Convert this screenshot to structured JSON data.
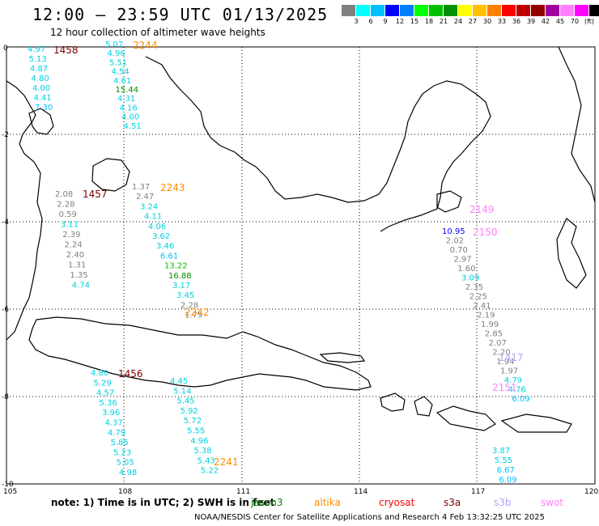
{
  "header": {
    "title": "12:00 – 23:59 UTC 01/13/2025",
    "subtitle": "12 hour collection of altimeter wave heights"
  },
  "scale": {
    "colors": [
      "#808080",
      "#00ffff",
      "#00c0ff",
      "#0000ff",
      "#0080ff",
      "#00ff00",
      "#00c000",
      "#009000",
      "#ffff00",
      "#ffc000",
      "#ff8000",
      "#ff0000",
      "#c00000",
      "#900000",
      "#a000a0",
      "#ff80ff",
      "#ff00ff",
      "#000000"
    ],
    "labels": [
      "3",
      "6",
      "9",
      "12",
      "15",
      "18",
      "21",
      "24",
      "27",
      "30",
      "33",
      "36",
      "39",
      "42",
      "45",
      "70",
      "(ft)"
    ]
  },
  "axes": {
    "x_ticks": [
      "105",
      "108",
      "111",
      "114",
      "117",
      "120"
    ],
    "y_ticks": [
      "0",
      "-2",
      "-4",
      "-6",
      "-8",
      "-10"
    ]
  },
  "passes": [
    {
      "id": "1458",
      "color": "#800000"
    },
    {
      "id": "2244",
      "color": "#ff8c00"
    },
    {
      "id": "1457",
      "color": "#800000"
    },
    {
      "id": "2243",
      "color": "#ff8c00"
    },
    {
      "id": "2242",
      "color": "#ff8c00"
    },
    {
      "id": "1456",
      "color": "#800000"
    },
    {
      "id": "2241",
      "color": "#ff8c00"
    },
    {
      "id": "2149",
      "color": "#ff80ff"
    },
    {
      "id": "2150",
      "color": "#ff80ff"
    },
    {
      "id": "1417",
      "color": "#b0a0ff"
    },
    {
      "id": "2151",
      "color": "#ff80ff"
    }
  ],
  "wave_heights": {
    "track_a": [
      "4.97",
      "5.13",
      "4.87",
      "4.80",
      "4.00",
      "4.41",
      "7.30"
    ],
    "track_b": [
      "5.07",
      "4.96",
      "5.51",
      "4.54",
      "4.61",
      "15.44",
      "4.31",
      "4.16",
      "4.00",
      "4.51"
    ],
    "track_c": [
      "2.08",
      "2.28",
      "0.59",
      "3.11",
      "2.39",
      "2.24",
      "2.40",
      "1.31",
      "1.35",
      "4.74"
    ],
    "track_d": [
      "1.37",
      "2.47",
      "3.24",
      "4.11",
      "4.06",
      "3.62",
      "3.46",
      "6.61",
      "13.22",
      "16.88",
      "3.17",
      "3.45",
      "2.28",
      "1.79"
    ],
    "track_e": [
      "4.80",
      "5.29",
      "4.57",
      "5.36",
      "3.96",
      "4.37",
      "4.79",
      "5.85",
      "5.23",
      "5.05",
      "4.98"
    ],
    "track_f": [
      "4.45",
      "5.14",
      "5.45",
      "5.92",
      "5.72",
      "5.55",
      "4.96",
      "5.38",
      "5.43",
      "5.22"
    ],
    "track_g": [
      "10.95",
      "2.02",
      "0.70",
      "2.97",
      "1.60",
      "3.09",
      "2.35",
      "2.25",
      "2.41",
      "2.19",
      "1.99",
      "2.85",
      "2.07",
      "2.20",
      "1.94",
      "1.97",
      "4.79",
      "4.76",
      "6.09"
    ],
    "track_h": [
      "3.87",
      "5.55",
      "6.67",
      "6.09"
    ]
  },
  "note": "note:  1) Time is in UTC;  2) SWH is in feet",
  "missions": [
    {
      "name": "jason3",
      "color": "#008000"
    },
    {
      "name": "altika",
      "color": "#ff8c00"
    },
    {
      "name": "cryosat",
      "color": "#ff0000"
    },
    {
      "name": "s3a",
      "color": "#800000"
    },
    {
      "name": "s3b",
      "color": "#b0a0ff"
    },
    {
      "name": "swot",
      "color": "#ff80ff"
    }
  ],
  "footer": "NOAA/NESDIS Center for Satellite Applications and Research      4 Feb 13:32:25 UTC 2025"
}
